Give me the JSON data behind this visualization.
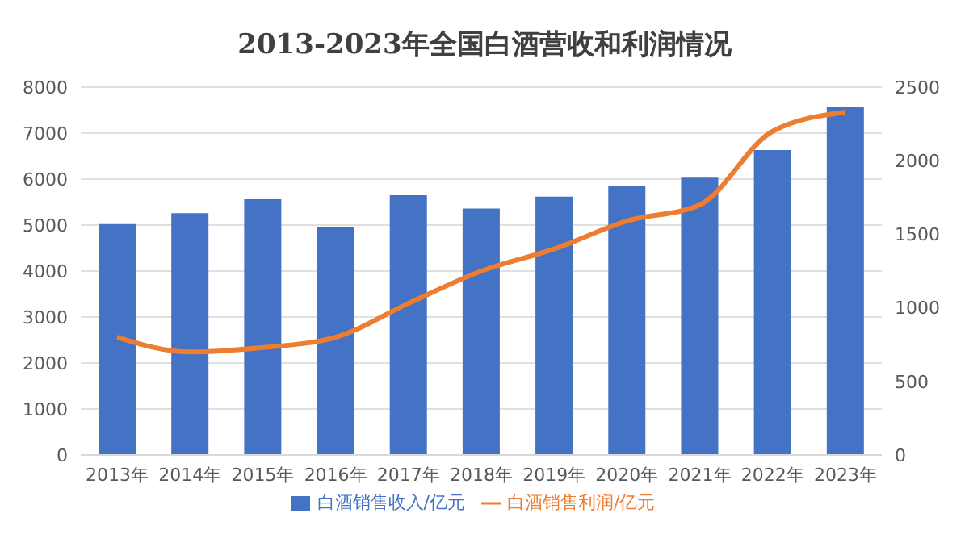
{
  "chart_data": {
    "type": "bar",
    "title": "2013-2023年全国白酒营收和利润情况",
    "categories": [
      "2013年",
      "2014年",
      "2015年",
      "2016年",
      "2017年",
      "2018年",
      "2019年",
      "2020年",
      "2021年",
      "2022年",
      "2023年"
    ],
    "series": [
      {
        "name": "白酒销售收入/亿元",
        "color": "#4472c4",
        "values": [
          5020,
          5260,
          5560,
          4950,
          5650,
          5360,
          5620,
          5840,
          6030,
          6630,
          7560
        ]
      },
      {
        "name": "白酒销售利润/亿元",
        "type": "line",
        "axis": "y2",
        "color": "#ed7d31",
        "values": [
          800,
          700,
          730,
          800,
          1030,
          1250,
          1400,
          1590,
          1700,
          2200,
          2330
        ]
      }
    ],
    "ylim": [
      0,
      8000
    ],
    "yticks": [
      0,
      1000,
      2000,
      3000,
      4000,
      5000,
      6000,
      7000,
      8000
    ],
    "y2lim": [
      0,
      2500
    ],
    "y2ticks": [
      0,
      500,
      1000,
      1500,
      2000,
      2500
    ],
    "grid": "y",
    "legend": "bottom",
    "marker": "none",
    "line_style": "solid"
  }
}
